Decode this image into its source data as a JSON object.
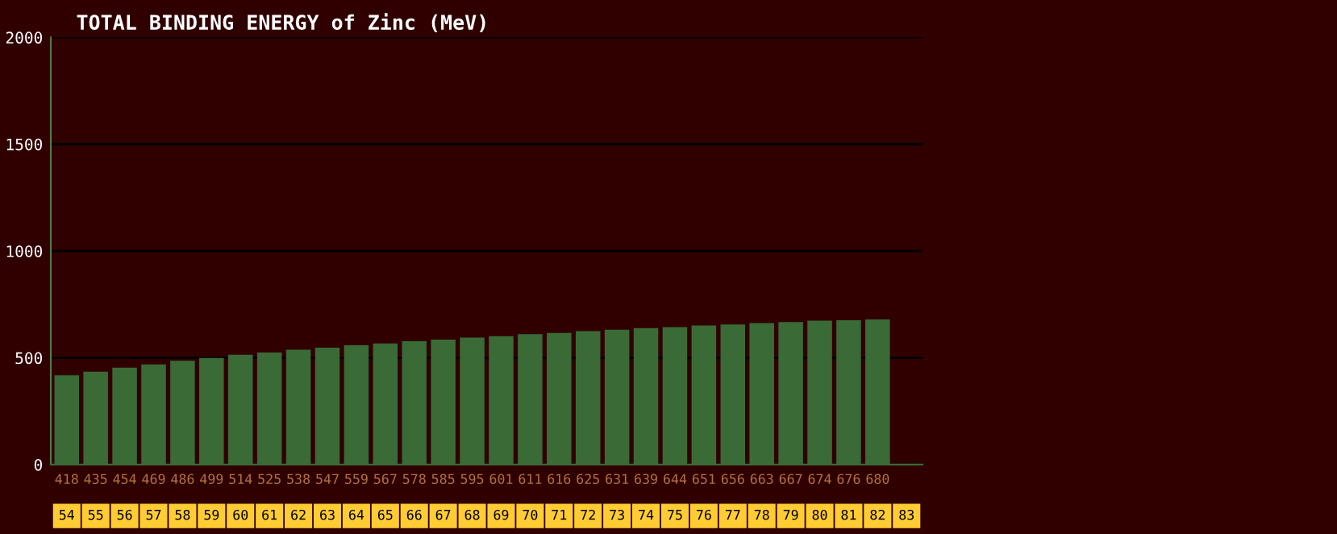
{
  "chart_data": {
    "type": "bar",
    "title": "TOTAL BINDING ENERGY of Zinc (MeV)",
    "categories": [
      "54",
      "55",
      "56",
      "57",
      "58",
      "59",
      "60",
      "61",
      "62",
      "63",
      "64",
      "65",
      "66",
      "67",
      "68",
      "69",
      "70",
      "71",
      "72",
      "73",
      "74",
      "75",
      "76",
      "77",
      "78",
      "79",
      "80",
      "81",
      "82",
      "83"
    ],
    "values": [
      418,
      435,
      454,
      469,
      486,
      499,
      514,
      525,
      538,
      547,
      559,
      567,
      578,
      585,
      595,
      601,
      611,
      616,
      625,
      631,
      639,
      644,
      651,
      656,
      663,
      667,
      674,
      676,
      680,
      null
    ],
    "value_labels": [
      "418",
      "435",
      "454",
      "469",
      "486",
      "499",
      "514",
      "525",
      "538",
      "547",
      "559",
      "567",
      "578",
      "585",
      "595",
      "601",
      "611",
      "616",
      "625",
      "631",
      "639",
      "644",
      "651",
      "656",
      "663",
      "667",
      "674",
      "676",
      "680",
      null
    ],
    "color": "#3a6a36",
    "ylim": [
      0,
      2000
    ],
    "yticks": [
      0,
      500,
      1000,
      1500,
      2000
    ],
    "grid": "y"
  }
}
